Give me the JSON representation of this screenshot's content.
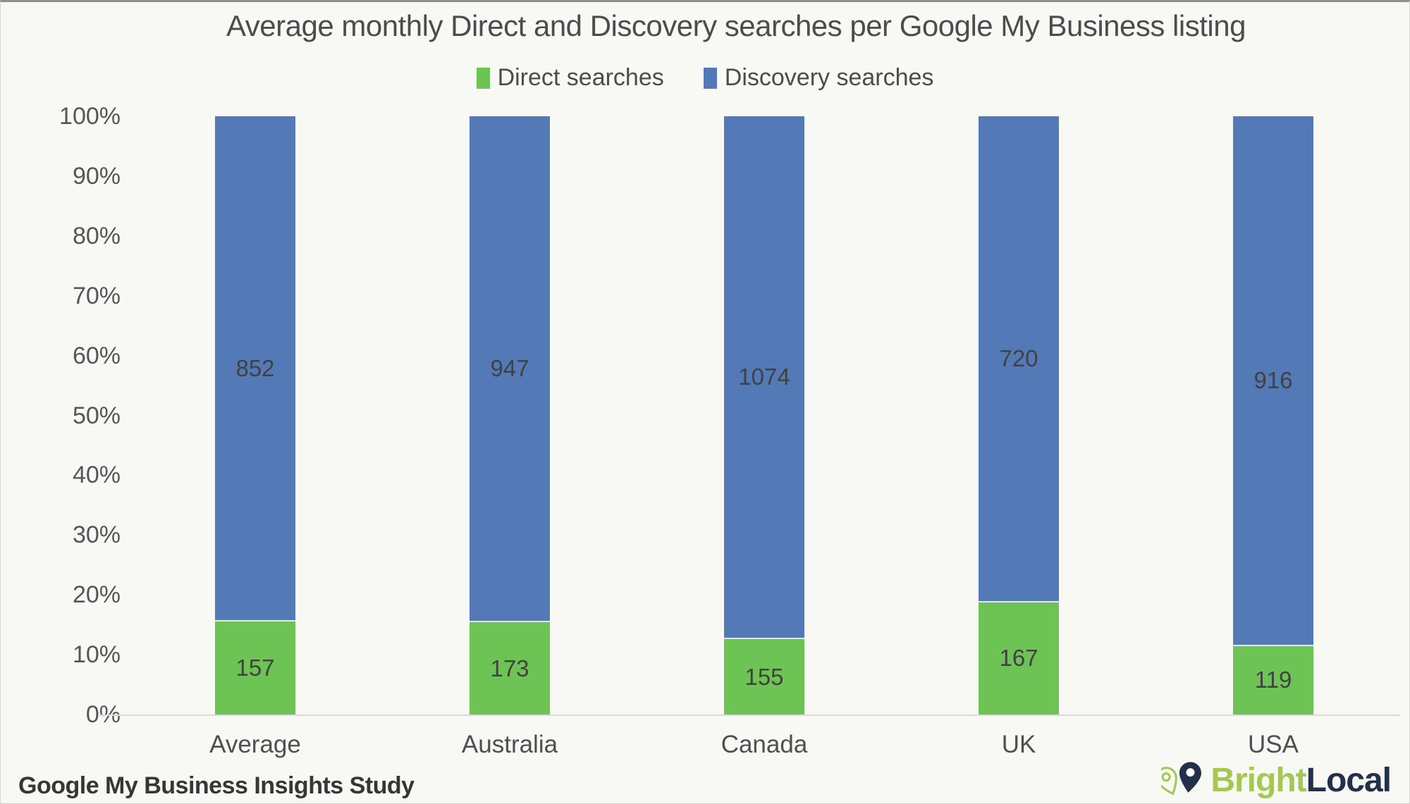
{
  "title": "Average monthly Direct and Discovery searches per Google My Business listing",
  "footer": {
    "source": "Google My Business Insights Study",
    "brand_bright": "Bright",
    "brand_local": "Local"
  },
  "brand_colors": {
    "bright_green": "#a5c854",
    "local_navy": "#22304a"
  },
  "chart_data": {
    "type": "bar",
    "stacked": true,
    "percent_axis": true,
    "title": "Average monthly Direct and Discovery searches per Google My Business listing",
    "categories": [
      "Average",
      "Australia",
      "Canada",
      "UK",
      "USA"
    ],
    "series": [
      {
        "name": "Direct searches",
        "color": "#6dc353",
        "values": [
          157,
          173,
          155,
          167,
          119
        ]
      },
      {
        "name": "Discovery searches",
        "color": "#537ab7",
        "values": [
          852,
          947,
          1074,
          720,
          916
        ]
      }
    ],
    "y_ticks": [
      "0%",
      "10%",
      "20%",
      "30%",
      "40%",
      "50%",
      "60%",
      "70%",
      "80%",
      "90%",
      "100%"
    ],
    "ylim": [
      0,
      100
    ],
    "grid": false,
    "legend_position": "top",
    "data_labels": true
  }
}
